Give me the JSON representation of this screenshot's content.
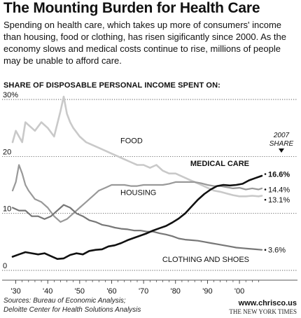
{
  "header": {
    "title": "The Mounting Burden for Health Care",
    "intro": "Spending on health care, which takes up more of consumers' income than housing, food or clothing, has risen sigificantly since 2000. As the economy slows and medical costs continue to rise, millions of people may be unable to afford care.",
    "subhead": "SHARE OF DISPOSABLE PERSONAL INCOME SPENT ON:"
  },
  "footer": {
    "sources_line1": "Sources: Bureau of Economic Analysis;",
    "sources_line2": "Deloitte Center for Health Solutions Analysis",
    "credit_site": "www.chrisco.us",
    "credit_paper": "THE NEW YORK TIMES"
  },
  "chart_data": {
    "type": "line",
    "title": "",
    "xlabel": "",
    "ylabel": "",
    "xlim": [
      1929,
      2007
    ],
    "ylim": [
      0,
      30
    ],
    "y_ticks": [
      0,
      10,
      20,
      30
    ],
    "y_tick_labels": [
      "0",
      "10",
      "20",
      "30%"
    ],
    "x_ticks": [
      1930,
      1940,
      1950,
      1960,
      1970,
      1980,
      1990,
      2000
    ],
    "x_tick_labels": [
      "'30",
      "'40",
      "'50",
      "'60",
      "'70",
      "'80",
      "'90",
      "'00"
    ],
    "share_header_line1": "2007",
    "share_header_line2": "SHARE",
    "series": [
      {
        "name": "FOOD",
        "color": "#c9c9c9",
        "end_label": "13.1%",
        "x": [
          1929,
          1930,
          1931,
          1932,
          1933,
          1934,
          1936,
          1938,
          1940,
          1942,
          1944,
          1945,
          1946,
          1947,
          1948,
          1950,
          1952,
          1954,
          1956,
          1958,
          1960,
          1962,
          1964,
          1966,
          1968,
          1970,
          1972,
          1974,
          1976,
          1978,
          1980,
          1982,
          1984,
          1986,
          1988,
          1990,
          1992,
          1994,
          1996,
          1998,
          2000,
          2002,
          2004,
          2006,
          2007
        ],
        "y": [
          22.5,
          24.5,
          23.5,
          22.5,
          26.0,
          25.5,
          24.5,
          26.0,
          25.0,
          23.5,
          28.0,
          30.5,
          27.5,
          26.0,
          25.0,
          23.5,
          22.5,
          22.0,
          21.5,
          21.0,
          20.5,
          20.0,
          19.5,
          19.0,
          18.5,
          18.5,
          18.0,
          18.5,
          17.5,
          17.0,
          17.0,
          16.5,
          16.0,
          15.5,
          15.0,
          14.5,
          14.0,
          13.8,
          13.5,
          13.2,
          13.0,
          13.0,
          13.1,
          13.0,
          13.1
        ]
      },
      {
        "name": "HOUSING",
        "color": "#999999",
        "end_label": "14.4%",
        "x": [
          1929,
          1930,
          1931,
          1932,
          1933,
          1934,
          1936,
          1938,
          1940,
          1942,
          1944,
          1946,
          1948,
          1950,
          1952,
          1954,
          1956,
          1958,
          1960,
          1962,
          1964,
          1966,
          1968,
          1970,
          1972,
          1974,
          1976,
          1978,
          1980,
          1982,
          1984,
          1986,
          1988,
          1990,
          1992,
          1994,
          1996,
          1998,
          2000,
          2002,
          2004,
          2006,
          2007
        ],
        "y": [
          14.0,
          15.5,
          18.5,
          17.0,
          15.0,
          14.0,
          12.5,
          12.0,
          11.0,
          9.5,
          8.5,
          9.0,
          10.0,
          11.0,
          12.0,
          13.0,
          14.0,
          14.5,
          15.0,
          15.0,
          15.0,
          14.8,
          14.8,
          15.0,
          15.0,
          15.0,
          15.0,
          15.2,
          15.5,
          15.5,
          15.5,
          15.5,
          15.3,
          15.0,
          14.8,
          14.8,
          14.6,
          14.4,
          14.5,
          14.2,
          14.4,
          14.2,
          14.4
        ]
      },
      {
        "name": "MEDICAL CARE",
        "color": "#111111",
        "end_label": "16.6%",
        "x": [
          1929,
          1931,
          1933,
          1935,
          1937,
          1939,
          1941,
          1943,
          1945,
          1947,
          1949,
          1951,
          1953,
          1955,
          1957,
          1959,
          1961,
          1963,
          1965,
          1967,
          1969,
          1971,
          1973,
          1975,
          1977,
          1979,
          1981,
          1983,
          1985,
          1987,
          1989,
          1991,
          1993,
          1995,
          1997,
          1999,
          2001,
          2003,
          2005,
          2007
        ],
        "y": [
          2.4,
          2.8,
          3.2,
          3.0,
          2.8,
          3.0,
          2.5,
          2.0,
          2.1,
          2.7,
          3.0,
          2.8,
          3.4,
          3.6,
          3.7,
          4.2,
          4.4,
          4.8,
          5.3,
          5.7,
          6.1,
          6.5,
          7.0,
          7.4,
          7.8,
          8.4,
          9.1,
          10.0,
          11.2,
          12.4,
          13.4,
          14.2,
          14.8,
          15.0,
          14.9,
          15.0,
          15.2,
          15.8,
          16.2,
          16.6
        ]
      },
      {
        "name": "CLOTHING AND SHOES",
        "color": "#777777",
        "end_label": "3.6%",
        "x": [
          1929,
          1931,
          1933,
          1935,
          1937,
          1939,
          1941,
          1943,
          1944,
          1945,
          1947,
          1949,
          1951,
          1953,
          1955,
          1957,
          1959,
          1961,
          1963,
          1965,
          1967,
          1969,
          1971,
          1973,
          1975,
          1977,
          1979,
          1981,
          1983,
          1985,
          1987,
          1989,
          1991,
          1993,
          1995,
          1997,
          1999,
          2001,
          2003,
          2005,
          2007
        ],
        "y": [
          11.0,
          10.5,
          10.5,
          9.5,
          9.5,
          9.0,
          9.5,
          10.5,
          11.0,
          11.5,
          11.0,
          10.0,
          9.5,
          8.8,
          8.5,
          8.0,
          7.8,
          7.5,
          7.3,
          7.2,
          7.0,
          7.0,
          6.8,
          6.8,
          6.5,
          6.3,
          6.0,
          5.6,
          5.4,
          5.3,
          5.2,
          5.0,
          4.8,
          4.6,
          4.4,
          4.2,
          4.0,
          3.9,
          3.8,
          3.7,
          3.6
        ]
      }
    ],
    "grid": "horizontal"
  }
}
